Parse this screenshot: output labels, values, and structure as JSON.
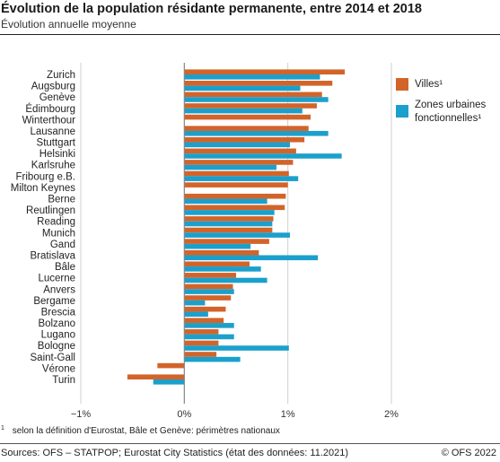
{
  "header": {
    "title": "Évolution de la population résidante permanente, entre 2014 et 2018",
    "subtitle": "Évolution annuelle moyenne"
  },
  "footer": {
    "footnote_mark": "1",
    "footnote_text": "selon la définition d'Eurostat, Bâle et Genève: périmètres nationaux",
    "sources": "Sources: OFS – STATPOP; Eurostat City Statistics (état des données: 11.2021)",
    "copyright": "© OFS 2022"
  },
  "colors": {
    "villes": "#d2642a",
    "zones": "#1ba0cc",
    "grid": "#cfcfcf",
    "axis": "#888888"
  },
  "chart_data": {
    "type": "bar",
    "orientation": "horizontal",
    "categories": [
      "Zurich",
      "Augsburg",
      "Genève",
      "Édimbourg",
      "Winterthour",
      "Lausanne",
      "Stuttgart",
      "Helsinki",
      "Karlsruhe",
      "Fribourg e.B.",
      "Milton Keynes",
      "Berne",
      "Reutlingen",
      "Reading",
      "Munich",
      "Gand",
      "Bratislava",
      "Bâle",
      "Lucerne",
      "Anvers",
      "Bergame",
      "Brescia",
      "Bolzano",
      "Lugano",
      "Bologne",
      "Saint-Gall",
      "Vérone",
      "Turin"
    ],
    "series": [
      {
        "name": "Villes¹",
        "color": "#d2642a",
        "values": [
          1.55,
          1.43,
          1.33,
          1.28,
          1.22,
          1.2,
          1.16,
          1.08,
          1.05,
          1.01,
          1.0,
          0.98,
          0.97,
          0.86,
          0.85,
          0.82,
          0.72,
          0.63,
          0.5,
          0.47,
          0.45,
          0.4,
          0.38,
          0.33,
          0.33,
          0.31,
          -0.26,
          -0.55
        ]
      },
      {
        "name": "Zones urbaines fonctionnelles¹",
        "color": "#1ba0cc",
        "values": [
          1.31,
          1.12,
          1.39,
          1.14,
          null,
          1.39,
          1.02,
          1.52,
          0.89,
          1.1,
          null,
          0.8,
          0.87,
          0.85,
          1.02,
          0.64,
          1.29,
          0.74,
          0.8,
          0.48,
          0.2,
          0.23,
          0.48,
          0.48,
          1.01,
          0.54,
          null,
          -0.3
        ]
      }
    ],
    "xlim": [
      -1,
      2
    ],
    "ticks": [
      -1,
      0,
      1,
      2
    ],
    "tick_labels": [
      "−1%",
      "0%",
      "1%",
      "2%"
    ],
    "grid": true,
    "legend_position": "right",
    "legend": [
      "Villes¹",
      "Zones urbaines fonctionnelles¹"
    ]
  }
}
